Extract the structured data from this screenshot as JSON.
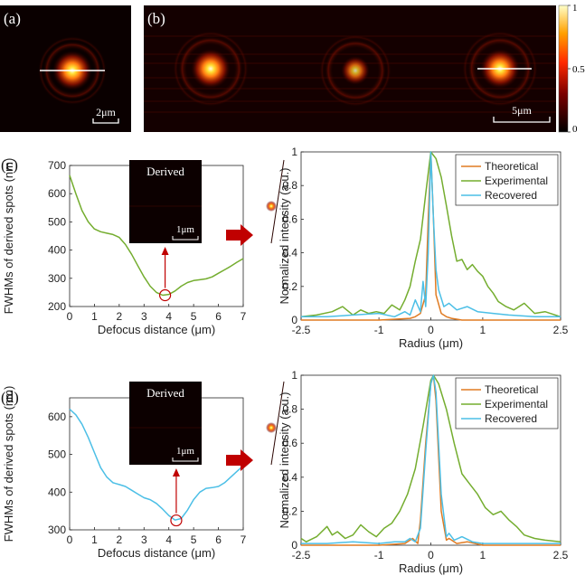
{
  "panel_a": {
    "label": "(a)",
    "scale_bar": "2μm"
  },
  "panel_b": {
    "label": "(b)",
    "scale_bar": "5μm"
  },
  "colorbar": {
    "ticks": [
      {
        "value": 1,
        "label": "1"
      },
      {
        "value": 0.5,
        "label": "0.5"
      },
      {
        "value": 0,
        "label": "0"
      }
    ]
  },
  "colors": {
    "theoretical": "#e07b22",
    "experimental": "#74ad2f",
    "recovered": "#4cbfe6",
    "arrow": "#c00000"
  },
  "chart_data": [
    {
      "id": "c-left",
      "panel_label": "(c)",
      "type": "line",
      "xlabel": "Defocus distance (μm)",
      "ylabel": "FWHMs of derived spots (nm)",
      "xlim": [
        0,
        7
      ],
      "ylim": [
        200,
        700
      ],
      "xticks": [
        0,
        1,
        2,
        3,
        4,
        5,
        6,
        7
      ],
      "yticks": [
        200,
        300,
        400,
        500,
        600,
        700
      ],
      "inset_title": "Derived",
      "inset_scale": "1μm",
      "minimum_marker": {
        "x": 3.85,
        "y": 240
      },
      "series": [
        {
          "color": "#74ad2f",
          "x": [
            0,
            0.25,
            0.5,
            0.75,
            1,
            1.25,
            1.5,
            1.75,
            2,
            2.25,
            2.5,
            2.75,
            3,
            3.25,
            3.5,
            3.75,
            4,
            4.25,
            4.5,
            4.75,
            5,
            5.25,
            5.5,
            5.75,
            6,
            6.25,
            6.5,
            6.75,
            7
          ],
          "y": [
            665,
            600,
            540,
            500,
            475,
            465,
            460,
            455,
            445,
            420,
            385,
            345,
            305,
            272,
            250,
            240,
            243,
            255,
            272,
            285,
            292,
            295,
            298,
            305,
            318,
            330,
            343,
            357,
            370
          ]
        }
      ]
    },
    {
      "id": "c-right",
      "type": "line",
      "xlabel": "Radius (μm)",
      "ylabel": "Normalized intensity (a.u.)",
      "xlim": [
        -2.5,
        2.5
      ],
      "ylim": [
        0,
        1
      ],
      "xticks": [
        -2.5,
        -1,
        0,
        1,
        2.5
      ],
      "yticks": [
        0,
        0.2,
        0.4,
        0.6,
        0.8,
        1
      ],
      "legend": "top-right",
      "series": [
        {
          "name": "Theoretical",
          "color": "#e07b22",
          "x": [
            -2.5,
            -1,
            -0.4,
            -0.3,
            -0.2,
            -0.1,
            -0.05,
            0,
            0.05,
            0.1,
            0.2,
            0.3,
            0.4,
            0.6,
            1,
            2.5
          ],
          "y": [
            0,
            0,
            0.01,
            0.02,
            0.04,
            0.15,
            0.6,
            1,
            0.6,
            0.15,
            0.04,
            0.02,
            0.01,
            0,
            0,
            0
          ]
        },
        {
          "name": "Experimental",
          "color": "#74ad2f",
          "x": [
            -2.5,
            -2.2,
            -1.9,
            -1.7,
            -1.5,
            -1.35,
            -1.2,
            -1.05,
            -0.9,
            -0.75,
            -0.6,
            -0.5,
            -0.4,
            -0.3,
            -0.2,
            -0.1,
            0,
            0.1,
            0.2,
            0.3,
            0.4,
            0.5,
            0.6,
            0.7,
            0.8,
            0.9,
            1.0,
            1.1,
            1.2,
            1.3,
            1.45,
            1.6,
            1.8,
            2.0,
            2.2,
            2.5
          ],
          "y": [
            0.02,
            0.03,
            0.05,
            0.08,
            0.03,
            0.06,
            0.04,
            0.05,
            0.04,
            0.09,
            0.06,
            0.12,
            0.2,
            0.35,
            0.48,
            0.75,
            1,
            0.96,
            0.85,
            0.68,
            0.5,
            0.35,
            0.36,
            0.3,
            0.33,
            0.29,
            0.26,
            0.2,
            0.16,
            0.11,
            0.08,
            0.06,
            0.1,
            0.04,
            0.05,
            0.02
          ]
        },
        {
          "name": "Recovered",
          "color": "#4cbfe6",
          "x": [
            -2.5,
            -2.0,
            -1.5,
            -1.0,
            -0.7,
            -0.5,
            -0.4,
            -0.3,
            -0.2,
            -0.15,
            -0.1,
            -0.05,
            0,
            0.05,
            0.1,
            0.15,
            0.25,
            0.35,
            0.5,
            0.7,
            0.9,
            1.2,
            1.5,
            2.0,
            2.5
          ],
          "y": [
            0.02,
            0.02,
            0.03,
            0.04,
            0.02,
            0.05,
            0.03,
            0.12,
            0.05,
            0.23,
            0.08,
            0.4,
            1,
            0.6,
            0.3,
            0.18,
            0.08,
            0.1,
            0.06,
            0.08,
            0.05,
            0.04,
            0.03,
            0.02,
            0.02
          ]
        }
      ]
    },
    {
      "id": "d-left",
      "panel_label": "(d)",
      "type": "line",
      "xlabel": "Defocus distance (μm)",
      "ylabel": "FWHMs of derived spots (nm)",
      "xlim": [
        0,
        7
      ],
      "ylim": [
        300,
        650
      ],
      "xticks": [
        0,
        1,
        2,
        3,
        4,
        5,
        6,
        7
      ],
      "yticks": [
        300,
        400,
        500,
        600
      ],
      "inset_title": "Derived",
      "inset_scale": "1μm",
      "minimum_marker": {
        "x": 4.3,
        "y": 325
      },
      "series": [
        {
          "color": "#4cbfe6",
          "x": [
            0,
            0.25,
            0.5,
            0.75,
            1,
            1.25,
            1.5,
            1.75,
            2,
            2.25,
            2.5,
            2.75,
            3,
            3.25,
            3.5,
            3.75,
            4,
            4.25,
            4.5,
            4.75,
            5,
            5.25,
            5.5,
            5.75,
            6,
            6.25,
            6.5,
            6.75,
            7
          ],
          "y": [
            620,
            605,
            580,
            545,
            505,
            465,
            440,
            425,
            420,
            415,
            405,
            395,
            385,
            380,
            370,
            355,
            338,
            326,
            330,
            352,
            380,
            400,
            410,
            412,
            415,
            425,
            440,
            455,
            470
          ]
        }
      ]
    },
    {
      "id": "d-right",
      "type": "line",
      "xlabel": "Radius (μm)",
      "ylabel": "Normalized intensity (a.u.)",
      "xlim": [
        -2.5,
        2.5
      ],
      "ylim": [
        0,
        1
      ],
      "xticks": [
        -2.5,
        -1,
        0,
        1,
        2.5
      ],
      "yticks": [
        0,
        0.2,
        0.4,
        0.6,
        0.8,
        1
      ],
      "legend": "top-right",
      "series": [
        {
          "name": "Theoretical",
          "color": "#e07b22",
          "x": [
            -2.5,
            -1,
            -0.5,
            -0.35,
            -0.25,
            -0.2,
            -0.1,
            0,
            0.05,
            0.1,
            0.2,
            0.3,
            0.35,
            0.5,
            0.7,
            1,
            2.5
          ],
          "y": [
            0,
            0,
            0.01,
            0.04,
            0.01,
            0.15,
            0.6,
            0.95,
            1,
            0.85,
            0.2,
            0.03,
            0.04,
            0.01,
            0.02,
            0,
            0
          ]
        },
        {
          "name": "Experimental",
          "color": "#74ad2f",
          "x": [
            -2.5,
            -2.4,
            -2.2,
            -2.0,
            -1.9,
            -1.8,
            -1.65,
            -1.5,
            -1.35,
            -1.2,
            -1.05,
            -0.9,
            -0.75,
            -0.6,
            -0.45,
            -0.3,
            -0.15,
            0,
            0.05,
            0.15,
            0.3,
            0.45,
            0.6,
            0.75,
            0.9,
            1.05,
            1.2,
            1.35,
            1.5,
            1.65,
            1.8,
            2.0,
            2.2,
            2.5
          ],
          "y": [
            0.04,
            0.02,
            0.05,
            0.11,
            0.06,
            0.08,
            0.04,
            0.06,
            0.12,
            0.08,
            0.05,
            0.1,
            0.13,
            0.2,
            0.3,
            0.45,
            0.7,
            0.97,
            1,
            0.95,
            0.8,
            0.6,
            0.42,
            0.36,
            0.3,
            0.22,
            0.18,
            0.2,
            0.15,
            0.11,
            0.06,
            0.04,
            0.03,
            0.02
          ]
        },
        {
          "name": "Recovered",
          "color": "#4cbfe6",
          "x": [
            -2.5,
            -2.0,
            -1.5,
            -1.0,
            -0.7,
            -0.5,
            -0.4,
            -0.3,
            -0.2,
            -0.1,
            0,
            0.05,
            0.1,
            0.2,
            0.3,
            0.35,
            0.45,
            0.6,
            0.8,
            1.0,
            1.5,
            2.0,
            2.5
          ],
          "y": [
            0.01,
            0.01,
            0.02,
            0.01,
            0.02,
            0.02,
            0.04,
            0.02,
            0.1,
            0.55,
            0.95,
            1,
            0.9,
            0.3,
            0.05,
            0.07,
            0.03,
            0.05,
            0.02,
            0.01,
            0.01,
            0.01,
            0.01
          ]
        }
      ]
    }
  ]
}
